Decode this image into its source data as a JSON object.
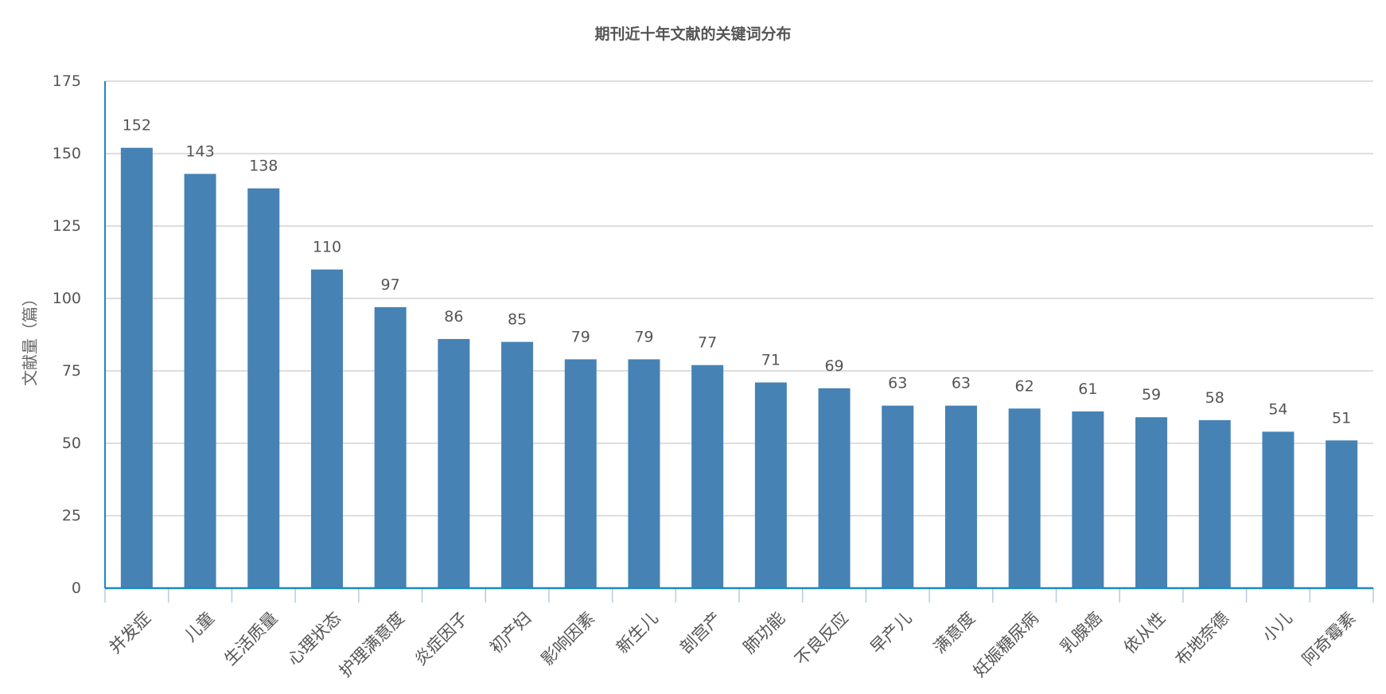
{
  "chart_data": {
    "type": "bar",
    "title": "期刊近十年文献的关键词分布",
    "xlabel": "",
    "ylabel": "文献量（篇）",
    "ylim": [
      0,
      175
    ],
    "yticks": [
      0,
      25,
      50,
      75,
      100,
      125,
      150,
      175
    ],
    "grid": true,
    "categories": [
      "并发症",
      "儿童",
      "生活质量",
      "心理状态",
      "护理满意度",
      "炎症因子",
      "初产妇",
      "影响因素",
      "新生儿",
      "剖宫产",
      "肺功能",
      "不良反应",
      "早产儿",
      "满意度",
      "妊娠糖尿病",
      "乳腺癌",
      "依从性",
      "布地奈德",
      "小儿",
      "阿奇霉素"
    ],
    "values": [
      152,
      143,
      138,
      110,
      97,
      86,
      85,
      79,
      79,
      77,
      71,
      69,
      63,
      63,
      62,
      61,
      59,
      58,
      54,
      51
    ],
    "colors": {
      "bar": "#4682b4",
      "axis": "#1a8ac6",
      "grid": "#d3d3d3"
    }
  }
}
